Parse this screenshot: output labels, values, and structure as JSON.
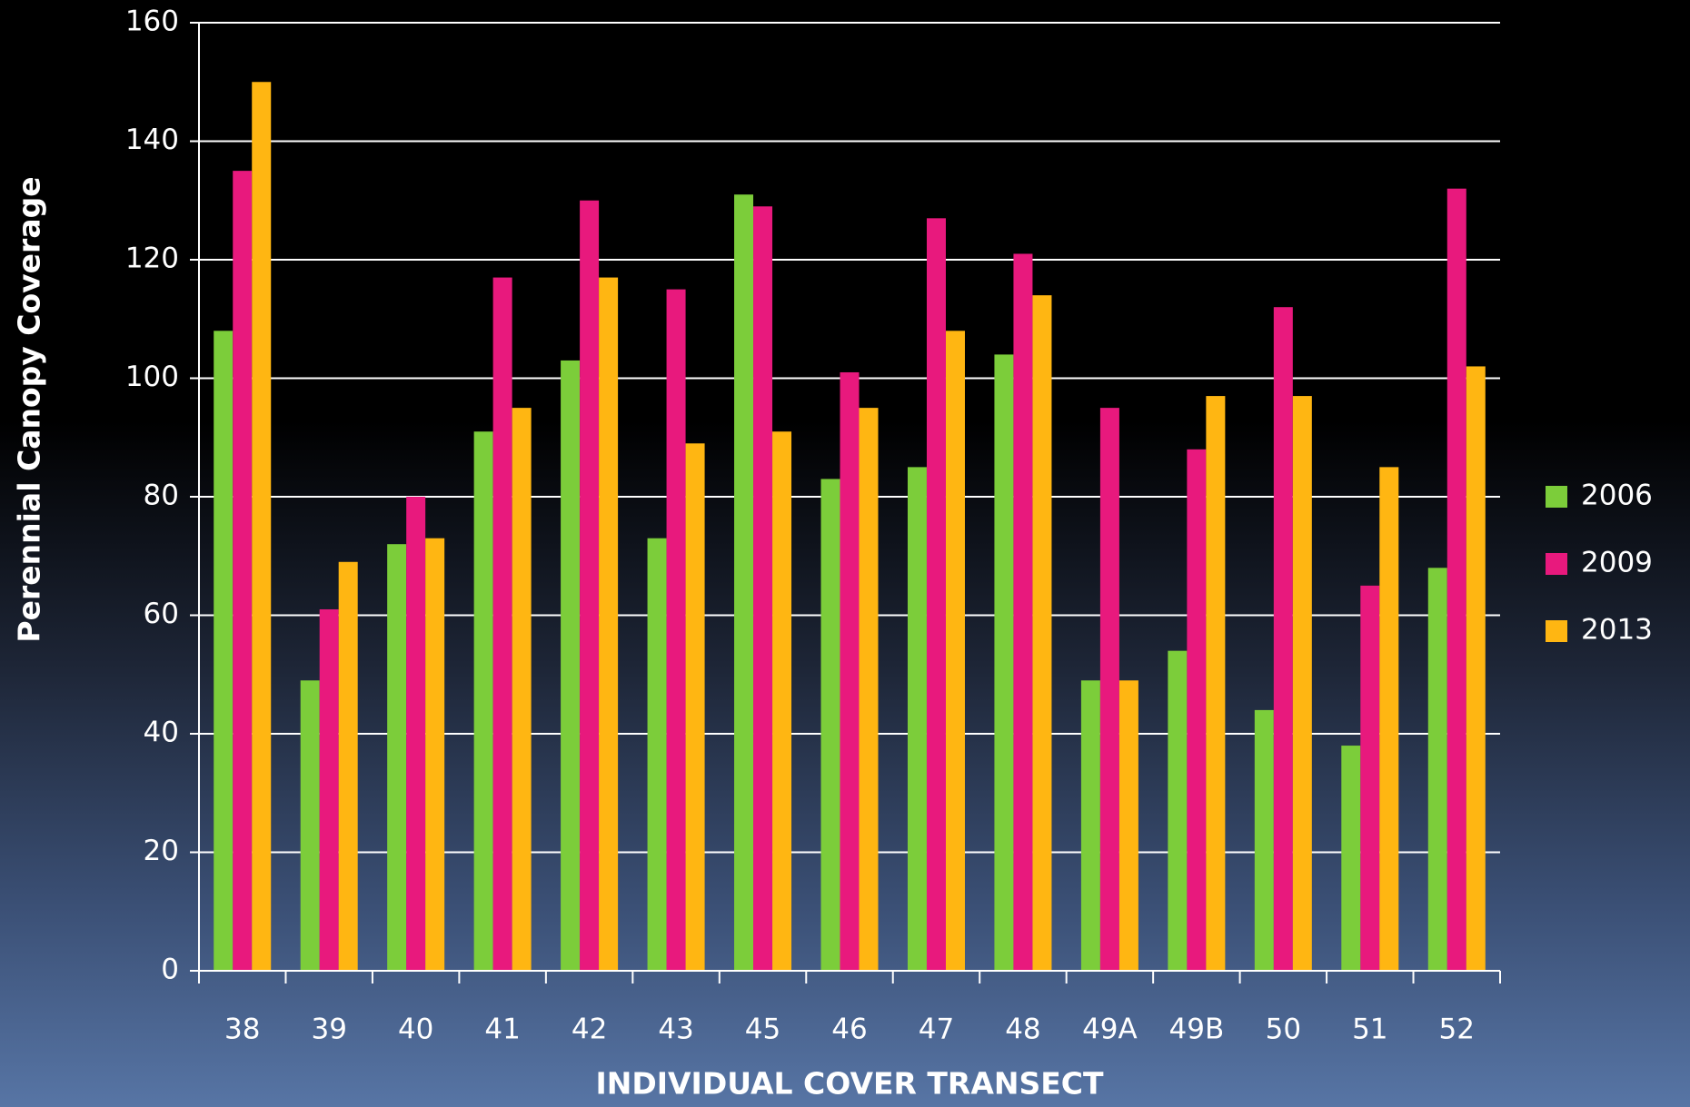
{
  "chart_data": {
    "type": "bar",
    "y_axis_label": "Perennial Canopy Coverage",
    "x_axis_label": "INDIVIDUAL COVER TRANSECT",
    "categories": [
      "38",
      "39",
      "40",
      "41",
      "42",
      "43",
      "45",
      "46",
      "47",
      "48",
      "49A",
      "49B",
      "50",
      "51",
      "52"
    ],
    "series": [
      {
        "name": "2006",
        "color": "#7ccd3a",
        "values": [
          108,
          49,
          72,
          91,
          103,
          73,
          131,
          83,
          85,
          104,
          49,
          54,
          44,
          38,
          68
        ]
      },
      {
        "name": "2009",
        "color": "#e8197d",
        "values": [
          135,
          61,
          80,
          117,
          130,
          115,
          129,
          101,
          127,
          121,
          95,
          88,
          112,
          65,
          132
        ]
      },
      {
        "name": "2013",
        "color": "#ffb612",
        "values": [
          150,
          69,
          73,
          95,
          117,
          89,
          91,
          95,
          108,
          114,
          49,
          97,
          97,
          85,
          102
        ]
      }
    ],
    "ylim": [
      0,
      160
    ],
    "yticks": [
      0,
      20,
      40,
      60,
      80,
      100,
      120,
      140,
      160
    ],
    "grid": true,
    "legend": "right"
  }
}
